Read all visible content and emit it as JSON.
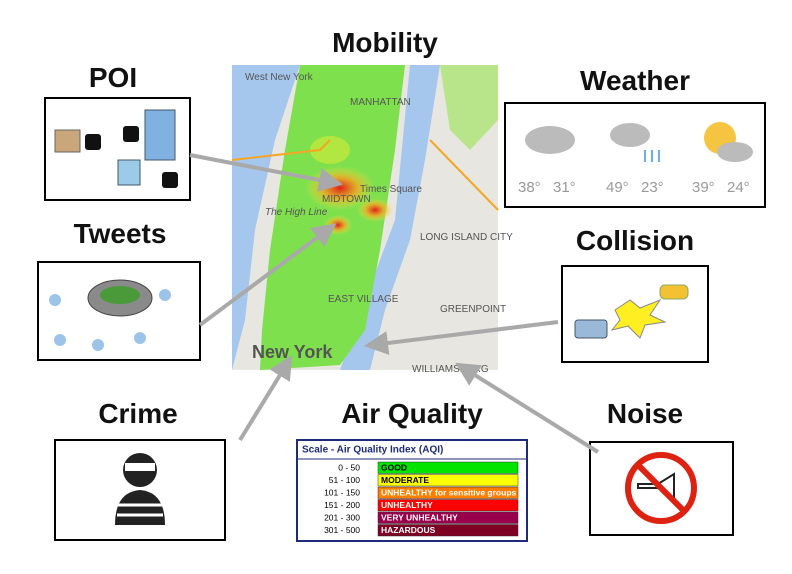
{
  "titles": {
    "mobility": "Mobility",
    "poi": "POI",
    "weather": "Weather",
    "tweets": "Tweets",
    "collision": "Collision",
    "crime": "Crime",
    "air_quality": "Air Quality",
    "noise": "Noise"
  },
  "map_labels": [
    "West New York",
    "MANHATTAN",
    "Times Square",
    "The High Line",
    "MIDTOWN",
    "LONG ISLAND CITY",
    "EAST VILLAGE",
    "GREENPOINT",
    "WILLIAMSBURG",
    "New York"
  ],
  "weather": [
    {
      "high": "38°",
      "low": "31°"
    },
    {
      "high": "49°",
      "low": "23°"
    },
    {
      "high": "39°",
      "low": "24°"
    }
  ],
  "aqi": {
    "title": "Scale - Air Quality Index (AQI)",
    "rows": [
      [
        "0 - 50",
        "GOOD"
      ],
      [
        "51 - 100",
        "MODERATE"
      ],
      [
        "101 - 150",
        "UNHEALTHY for sensitive groups"
      ],
      [
        "151 - 200",
        "UNHEALTHY"
      ],
      [
        "201 - 300",
        "VERY UNHEALTHY"
      ],
      [
        "301 - 500",
        "HAZARDOUS"
      ]
    ]
  }
}
